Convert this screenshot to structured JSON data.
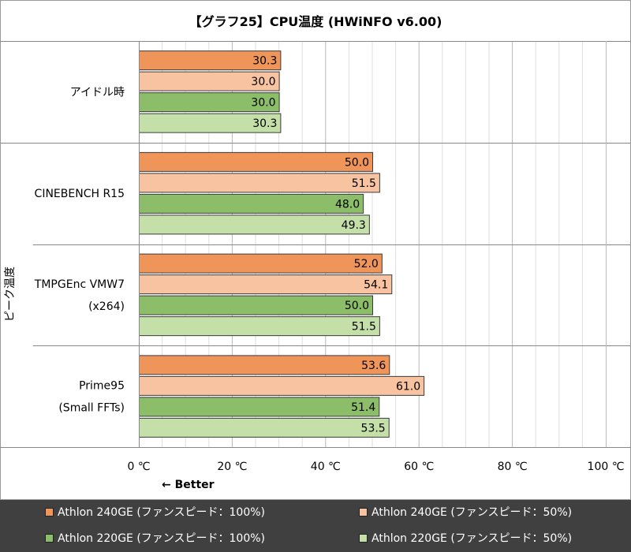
{
  "chart_data": {
    "type": "bar",
    "orientation": "horizontal",
    "title": "【グラフ25】CPU温度 (HWiNFO v6.00)",
    "ylabel": "ピーク温度",
    "xlim": [
      0,
      100
    ],
    "x_ticks": [
      0,
      20,
      40,
      60,
      80,
      100
    ],
    "x_tick_labels": [
      "0 ℃",
      "20 ℃",
      "40 ℃",
      "60 ℃",
      "80 ℃",
      "100 ℃"
    ],
    "annotation": "← Better",
    "grid": true,
    "legend_position": "bottom",
    "categories": [
      {
        "lines": [
          "アイドル時"
        ]
      },
      {
        "lines": [
          "CINEBENCH R15"
        ]
      },
      {
        "lines": [
          "TMPGEnc VMW7",
          "(x264)"
        ]
      },
      {
        "lines": [
          "Prime95",
          "(Small FFTs)"
        ]
      }
    ],
    "series": [
      {
        "name": "Athlon 240GE (ファンスピード：100%)",
        "color": "#f0955a",
        "values": [
          30.3,
          50.0,
          52.0,
          53.6
        ],
        "labels": [
          "30.3",
          "50.0",
          "52.0",
          "53.6"
        ]
      },
      {
        "name": "Athlon 240GE (ファンスピード：50%)",
        "color": "#f7c3a0",
        "values": [
          30.0,
          51.5,
          54.1,
          61.0
        ],
        "labels": [
          "30.0",
          "51.5",
          "54.1",
          "61.0"
        ]
      },
      {
        "name": "Athlon 220GE (ファンスピード：100%)",
        "color": "#8cbd68",
        "values": [
          30.0,
          48.0,
          50.0,
          51.4
        ],
        "labels": [
          "30.0",
          "48.0",
          "50.0",
          "51.4"
        ]
      },
      {
        "name": "Athlon 220GE (ファンスピード：50%)",
        "color": "#c4e0a8",
        "values": [
          30.3,
          49.3,
          51.5,
          53.5
        ],
        "labels": [
          "30.3",
          "49.3",
          "51.5",
          "53.5"
        ]
      }
    ]
  }
}
